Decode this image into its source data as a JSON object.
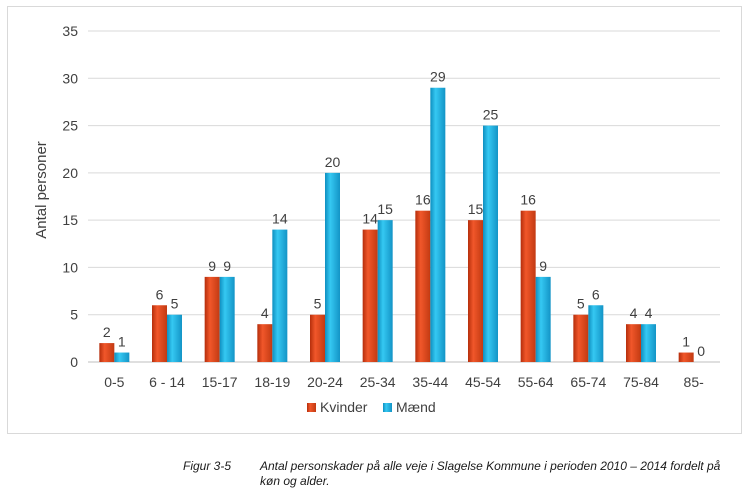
{
  "chart_data": {
    "type": "bar",
    "categories": [
      "0-5",
      "6 - 14",
      "15-17",
      "18-19",
      "20-24",
      "25-34",
      "35-44",
      "45-54",
      "55-64",
      "65-74",
      "75-84",
      "85-"
    ],
    "series": [
      {
        "name": "Kvinder",
        "color": "#e8491d",
        "values": [
          2,
          6,
          9,
          4,
          5,
          14,
          16,
          15,
          16,
          5,
          4,
          1
        ]
      },
      {
        "name": "Mænd",
        "color": "#1fb8e6",
        "values": [
          1,
          5,
          9,
          14,
          20,
          15,
          29,
          25,
          9,
          6,
          4,
          0
        ]
      }
    ],
    "title": "",
    "xlabel": "",
    "ylabel": "Antal personer",
    "ylim": [
      0,
      35
    ],
    "yticks": [
      0,
      5,
      10,
      15,
      20,
      25,
      30,
      35
    ],
    "grid": true,
    "legend": "bottom-center"
  },
  "caption": {
    "number": "Figur 3-5",
    "text": "Antal personskader på alle veje i Slagelse Kommune i perioden 2010 – 2014 fordelt på køn og alder."
  }
}
